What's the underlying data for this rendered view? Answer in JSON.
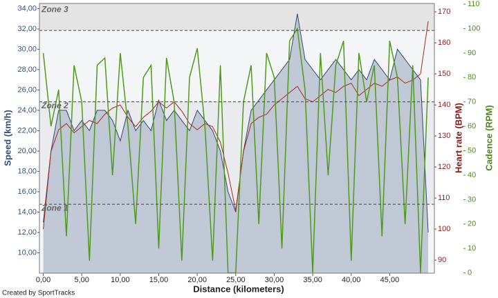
{
  "chart_data": {
    "type": "line",
    "x_label": "Distance (kilometers)",
    "y_label": "Speed (km/h)",
    "y2_label": "Heart rate (BPM)",
    "y3_label": "Cadence (RPM)",
    "credit": "Created by SportTracks",
    "x": [
      0,
      1,
      2,
      3,
      4,
      5,
      6,
      7,
      8,
      9,
      10,
      11,
      12,
      13,
      14,
      15,
      16,
      17,
      18,
      19,
      20,
      21,
      22,
      23,
      24,
      25,
      26,
      27,
      28,
      29,
      30,
      31,
      32,
      33,
      34,
      35,
      36,
      37,
      38,
      39,
      40,
      41,
      42,
      43,
      44,
      45,
      46,
      47,
      48,
      49,
      50
    ],
    "series": [
      {
        "name": "Speed",
        "color": "#34476b",
        "fill": "#b9c1d0",
        "axis": "y",
        "values": [
          13,
          20,
          24,
          24,
          22,
          23,
          22,
          24,
          24,
          23,
          21,
          24,
          22,
          23,
          22,
          25,
          23,
          24,
          23,
          22,
          24,
          23,
          22,
          20,
          16,
          14,
          20,
          24,
          25,
          26,
          27,
          28,
          29,
          33.5,
          29,
          28,
          27,
          28,
          29,
          28,
          27,
          28,
          27,
          29,
          28,
          27,
          30,
          29,
          28,
          27,
          12
        ]
      },
      {
        "name": "Heart rate",
        "color": "#a52a1a",
        "axis": "y2",
        "values": [
          100,
          125,
          132,
          134,
          131,
          133,
          135,
          134,
          137,
          139,
          140,
          136,
          133,
          136,
          138,
          141,
          139,
          141,
          138,
          134,
          132,
          134,
          133,
          128,
          118,
          106,
          125,
          134,
          136,
          137,
          140,
          142,
          144,
          146,
          142,
          141,
          143,
          145,
          144,
          146,
          147,
          143,
          145,
          147,
          146,
          148,
          149,
          147,
          148,
          150,
          167
        ]
      },
      {
        "name": "Cadence",
        "color": "#4f9a1a",
        "axis": "y3",
        "values": [
          90,
          60,
          75,
          15,
          85,
          70,
          5,
          85,
          88,
          40,
          90,
          60,
          20,
          80,
          85,
          10,
          88,
          70,
          5,
          80,
          92,
          60,
          5,
          85,
          0,
          0,
          70,
          85,
          20,
          90,
          80,
          10,
          95,
          100,
          75,
          0,
          90,
          40,
          85,
          95,
          5,
          90,
          70,
          85,
          15,
          95,
          80,
          20,
          85,
          0,
          80
        ]
      }
    ],
    "zones": [
      {
        "label": "Zone 1",
        "value": 108
      },
      {
        "label": "Zone 2",
        "value": 141
      },
      {
        "label": "Zone 3",
        "value": 164
      }
    ],
    "xlim": [
      -0.5,
      50.8
    ],
    "xticks": [
      {
        "value": 0,
        "label": "0,00"
      },
      {
        "value": 5,
        "label": "5,00"
      },
      {
        "value": 10,
        "label": "10,00"
      },
      {
        "value": 15,
        "label": "15,00"
      },
      {
        "value": 20,
        "label": "20,00"
      },
      {
        "value": 25,
        "label": "25,00"
      },
      {
        "value": 30,
        "label": "30,00"
      },
      {
        "value": 35,
        "label": "35,00"
      },
      {
        "value": 40,
        "label": "40,00"
      },
      {
        "value": 45,
        "label": "45,00"
      }
    ],
    "ylim": [
      8,
      34.5
    ],
    "yticks": [
      {
        "value": 10,
        "label": "10,00"
      },
      {
        "value": 12,
        "label": "12,00"
      },
      {
        "value": 14,
        "label": "14,00"
      },
      {
        "value": 16,
        "label": "16,00"
      },
      {
        "value": 18,
        "label": "18,00"
      },
      {
        "value": 20,
        "label": "20,00"
      },
      {
        "value": 22,
        "label": "22,00"
      },
      {
        "value": 24,
        "label": "24,00"
      },
      {
        "value": 26,
        "label": "26,00"
      },
      {
        "value": 28,
        "label": "28,00"
      },
      {
        "value": 30,
        "label": "30,00"
      },
      {
        "value": 32,
        "label": "32,00"
      },
      {
        "value": 34,
        "label": "34,00"
      }
    ],
    "y2lim": [
      85.8,
      172.7
    ],
    "y2ticks": [
      90,
      100,
      110,
      120,
      130,
      140,
      150,
      160,
      170
    ],
    "y3lim": [
      -0.1,
      110.3
    ],
    "y3ticks": [
      0,
      10,
      20,
      30,
      40,
      50,
      60,
      70,
      80,
      90,
      100,
      110
    ]
  }
}
